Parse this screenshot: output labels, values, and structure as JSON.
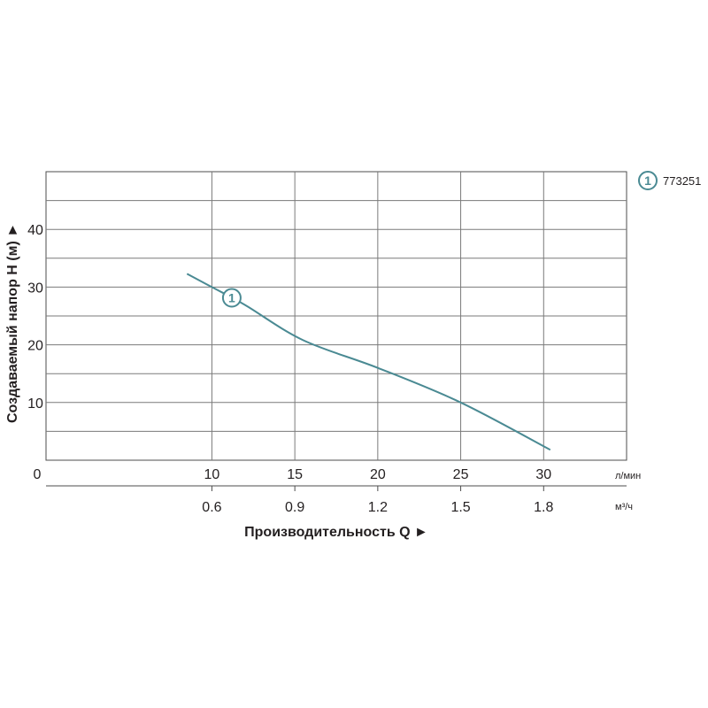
{
  "chart_data": {
    "type": "line",
    "x_primary": {
      "unit": "л/мин",
      "origin_label": "0",
      "ticks": [
        10,
        15,
        20,
        25,
        30
      ],
      "range": [
        0,
        35
      ]
    },
    "x_secondary": {
      "unit": "м³/ч",
      "ticks": [
        "0.6",
        "0.9",
        "1.2",
        "1.5",
        "1.8"
      ],
      "range": [
        0,
        2.1
      ]
    },
    "y": {
      "ticks": [
        10,
        20,
        30,
        40
      ],
      "range": [
        0,
        50
      ]
    },
    "xlabel": "Производительность Q ►",
    "ylabel": "Создаваемый напор H (м) ►",
    "grid": true,
    "series": [
      {
        "name": "773251",
        "badge": "1",
        "color": "#4a8a93",
        "x": [
          8.5,
          10,
          12,
          15.5,
          20,
          25,
          30.4
        ],
        "y": [
          32.3,
          30.0,
          26.9,
          20.8,
          16.0,
          10.0,
          1.8
        ],
        "label_at": 11.2
      }
    ],
    "legend_position": "top-right"
  }
}
